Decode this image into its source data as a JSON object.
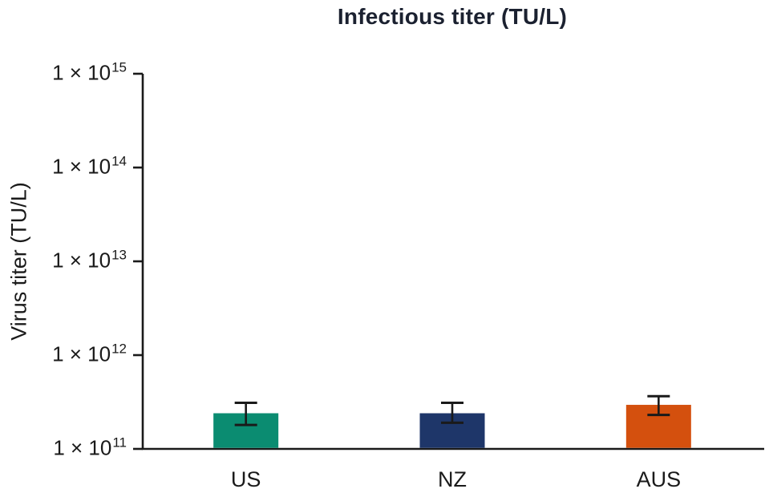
{
  "chart_data": {
    "type": "bar",
    "title": "Infectious titer (TU/L)",
    "ylabel": "Virus titer (TU/L)",
    "xlabel": "",
    "y_scale": "log",
    "ylim": [
      100000000000.0,
      1000000000000000.0
    ],
    "grid": false,
    "legend": false,
    "y_ticks": [
      {
        "base": "1 × 10",
        "exponent": "15",
        "value": 1000000000000000.0
      },
      {
        "base": "1 × 10",
        "exponent": "14",
        "value": 100000000000000.0
      },
      {
        "base": "1 × 10",
        "exponent": "13",
        "value": 10000000000000.0
      },
      {
        "base": "1 × 10",
        "exponent": "12",
        "value": 1000000000000.0
      },
      {
        "base": "1 × 10",
        "exponent": "11",
        "value": 100000000000.0
      }
    ],
    "categories": [
      "US",
      "NZ",
      "AUS"
    ],
    "series": [
      {
        "name": "Virus titer",
        "values": [
          240000000000.0,
          240000000000.0,
          295000000000.0
        ],
        "error_low": [
          180000000000.0,
          190000000000.0,
          230000000000.0
        ],
        "error_high": [
          310000000000.0,
          310000000000.0,
          365000000000.0
        ]
      }
    ],
    "bar_colors": [
      "#0b8c71",
      "#1e3669",
      "#d4500e"
    ],
    "axis_color": "#1a1a1a",
    "title_color": "#1b2130"
  }
}
